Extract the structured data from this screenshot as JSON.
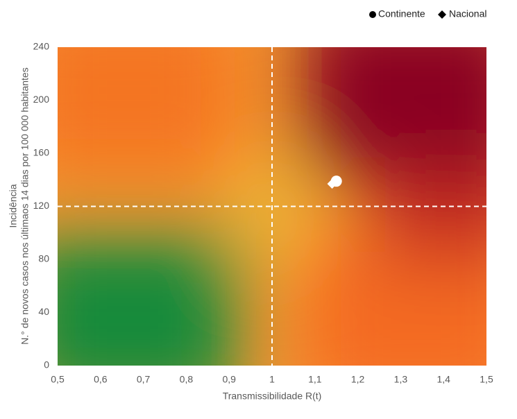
{
  "chart_data": {
    "type": "scatter",
    "xlabel": "Transmissibilidade R(t)",
    "ylabel": [
      "Incidência",
      "N.° de novos casos nos últimaos 14 dias por 100 000 habitantes"
    ],
    "series": [
      {
        "name": "Continente",
        "marker": "circle",
        "color": "#ffffff",
        "x": [
          1.15
        ],
        "values": [
          139
        ]
      },
      {
        "name": "Nacional",
        "marker": "diamond",
        "color": "#ffffff",
        "x": [
          1.14
        ],
        "values": [
          137
        ]
      }
    ],
    "xlim": [
      0.5,
      1.5
    ],
    "xticks": [
      {
        "value": 0.5,
        "label": "0,5"
      },
      {
        "value": 0.6,
        "label": "0,6"
      },
      {
        "value": 0.7,
        "label": "0,7"
      },
      {
        "value": 0.8,
        "label": "0,8"
      },
      {
        "value": 0.9,
        "label": "0,9"
      },
      1,
      {
        "value": 1.1,
        "label": "1,1"
      },
      {
        "value": 1.2,
        "label": "1,2"
      },
      {
        "value": 1.3,
        "label": "1,3"
      },
      {
        "value": 1.4,
        "label": "1,4"
      },
      {
        "value": 1.5,
        "label": "1,5"
      }
    ],
    "ylim": [
      0,
      240
    ],
    "yticks": [
      0,
      40,
      80,
      120,
      160,
      200,
      240
    ],
    "thresholds": {
      "x": 1,
      "y": 120
    },
    "legend": "top-right"
  }
}
